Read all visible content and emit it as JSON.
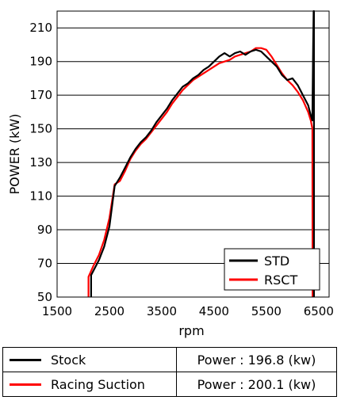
{
  "chart_data": {
    "type": "line",
    "xlabel": "rpm",
    "ylabel": "POWER (kW)",
    "xlim": [
      1500,
      6700
    ],
    "ylim": [
      50,
      220
    ],
    "xticks": [
      1500,
      2500,
      3500,
      4500,
      5500,
      6500
    ],
    "yticks": [
      50,
      70,
      90,
      110,
      130,
      150,
      170,
      190,
      210
    ],
    "grid": "horizontal",
    "legend_position": "bottom-right",
    "series": [
      {
        "name": "STD",
        "color": "#000000",
        "points": [
          [
            2150,
            50
          ],
          [
            2150,
            63
          ],
          [
            2200,
            66
          ],
          [
            2300,
            72
          ],
          [
            2400,
            80
          ],
          [
            2500,
            92
          ],
          [
            2600,
            116
          ],
          [
            2700,
            121
          ],
          [
            2800,
            127
          ],
          [
            2900,
            133
          ],
          [
            3000,
            138
          ],
          [
            3100,
            142
          ],
          [
            3200,
            145
          ],
          [
            3300,
            149
          ],
          [
            3400,
            154
          ],
          [
            3500,
            158
          ],
          [
            3600,
            162
          ],
          [
            3700,
            167
          ],
          [
            3800,
            171
          ],
          [
            3900,
            175
          ],
          [
            4000,
            177
          ],
          [
            4100,
            180
          ],
          [
            4200,
            182
          ],
          [
            4300,
            185
          ],
          [
            4400,
            187
          ],
          [
            4500,
            190
          ],
          [
            4600,
            193
          ],
          [
            4700,
            195
          ],
          [
            4800,
            193
          ],
          [
            4900,
            195
          ],
          [
            5000,
            196
          ],
          [
            5100,
            194
          ],
          [
            5200,
            196
          ],
          [
            5300,
            197
          ],
          [
            5400,
            196
          ],
          [
            5500,
            193
          ],
          [
            5600,
            190
          ],
          [
            5700,
            187
          ],
          [
            5800,
            182
          ],
          [
            5900,
            179
          ],
          [
            6000,
            180
          ],
          [
            6100,
            176
          ],
          [
            6200,
            170
          ],
          [
            6300,
            164
          ],
          [
            6350,
            158
          ],
          [
            6380,
            155
          ],
          [
            6395,
            200
          ],
          [
            6405,
            220
          ],
          [
            6410,
            220
          ],
          [
            6410,
            50
          ]
        ]
      },
      {
        "name": "RSCT",
        "color": "#ff0000",
        "points": [
          [
            2100,
            50
          ],
          [
            2100,
            62
          ],
          [
            2200,
            69
          ],
          [
            2300,
            75
          ],
          [
            2400,
            84
          ],
          [
            2500,
            97
          ],
          [
            2600,
            117
          ],
          [
            2700,
            119
          ],
          [
            2800,
            125
          ],
          [
            2900,
            132
          ],
          [
            3000,
            137
          ],
          [
            3100,
            141
          ],
          [
            3200,
            144
          ],
          [
            3300,
            148
          ],
          [
            3400,
            152
          ],
          [
            3500,
            156
          ],
          [
            3600,
            160
          ],
          [
            3700,
            165
          ],
          [
            3800,
            169
          ],
          [
            3900,
            173
          ],
          [
            4000,
            176
          ],
          [
            4100,
            179
          ],
          [
            4200,
            181
          ],
          [
            4300,
            183
          ],
          [
            4400,
            185
          ],
          [
            4500,
            187
          ],
          [
            4600,
            189
          ],
          [
            4700,
            190
          ],
          [
            4800,
            191
          ],
          [
            4900,
            193
          ],
          [
            5000,
            194
          ],
          [
            5100,
            195
          ],
          [
            5200,
            196
          ],
          [
            5300,
            198
          ],
          [
            5400,
            198
          ],
          [
            5500,
            197
          ],
          [
            5600,
            193
          ],
          [
            5700,
            188
          ],
          [
            5800,
            183
          ],
          [
            5900,
            179
          ],
          [
            6000,
            176
          ],
          [
            6100,
            172
          ],
          [
            6200,
            167
          ],
          [
            6300,
            160
          ],
          [
            6350,
            155
          ],
          [
            6380,
            150
          ],
          [
            6385,
            50
          ]
        ]
      }
    ]
  },
  "summary": {
    "rows": [
      {
        "label": "Stock",
        "color": "#000000",
        "value": "Power : 196.8 (kw)"
      },
      {
        "label": "Racing Suction",
        "color": "#ff0000",
        "value": "Power : 200.1 (kw)"
      }
    ]
  }
}
